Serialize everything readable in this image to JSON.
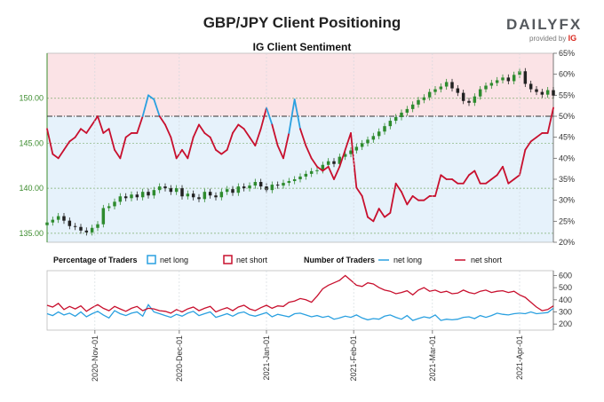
{
  "header": {
    "title": "GBP/JPY Client Positioning",
    "subtitle": "IG Client Sentiment",
    "logo_text": "DAILYFX",
    "logo_sub": "provided by",
    "logo_brand": "IG"
  },
  "legend": {
    "pct_label": "Percentage of Traders",
    "num_label": "Number of Traders",
    "net_long": "net long",
    "net_short": "net short"
  },
  "colors": {
    "net_long": "#2aa0e0",
    "net_short": "#c8102e",
    "bull_candle": "#2e8b2e",
    "bear_candle": "#222222",
    "long_fill": "#e6f2fb",
    "short_fill": "#fbe3e6",
    "price_axis": "#3c8c2e"
  },
  "chart_data": [
    {
      "type": "line",
      "name": "price-and-sentiment",
      "x_dates": [
        "2020-10-15",
        "2020-10-17",
        "2020-10-19",
        "2020-10-21",
        "2020-10-23",
        "2020-10-25",
        "2020-10-27",
        "2020-10-29",
        "2020-10-31",
        "2020-11-02",
        "2020-11-04",
        "2020-11-06",
        "2020-11-08",
        "2020-11-10",
        "2020-11-12",
        "2020-11-14",
        "2020-11-16",
        "2020-11-18",
        "2020-11-20",
        "2020-11-22",
        "2020-11-24",
        "2020-11-26",
        "2020-11-28",
        "2020-11-30",
        "2020-12-02",
        "2020-12-04",
        "2020-12-06",
        "2020-12-08",
        "2020-12-10",
        "2020-12-12",
        "2020-12-14",
        "2020-12-16",
        "2020-12-18",
        "2020-12-20",
        "2020-12-22",
        "2020-12-24",
        "2020-12-26",
        "2020-12-28",
        "2020-12-30",
        "2021-01-01",
        "2021-01-03",
        "2021-01-05",
        "2021-01-07",
        "2021-01-09",
        "2021-01-11",
        "2021-01-13",
        "2021-01-15",
        "2021-01-17",
        "2021-01-19",
        "2021-01-21",
        "2021-01-23",
        "2021-01-25",
        "2021-01-27",
        "2021-01-29",
        "2021-01-31",
        "2021-02-02",
        "2021-02-04",
        "2021-02-06",
        "2021-02-08",
        "2021-02-10",
        "2021-02-12",
        "2021-02-14",
        "2021-02-16",
        "2021-02-18",
        "2021-02-20",
        "2021-02-22",
        "2021-02-24",
        "2021-02-26",
        "2021-02-28",
        "2021-03-02",
        "2021-03-04",
        "2021-03-06",
        "2021-03-08",
        "2021-03-10",
        "2021-03-12",
        "2021-03-14",
        "2021-03-16",
        "2021-03-18",
        "2021-03-20",
        "2021-03-22",
        "2021-03-24",
        "2021-03-26",
        "2021-03-28",
        "2021-03-30",
        "2021-04-01",
        "2021-04-03",
        "2021-04-05",
        "2021-04-07",
        "2021-04-09",
        "2021-04-11",
        "2021-04-13"
      ],
      "price_close": [
        136.2,
        136.5,
        136.9,
        136.4,
        135.8,
        135.7,
        135.3,
        135.1,
        135.6,
        136.0,
        137.8,
        138.0,
        138.5,
        139.1,
        138.9,
        139.3,
        139.0,
        139.6,
        139.2,
        139.8,
        140.2,
        140.0,
        139.6,
        140.0,
        139.1,
        139.4,
        139.0,
        138.8,
        139.6,
        139.2,
        139.0,
        139.6,
        139.9,
        139.5,
        140.2,
        140.0,
        140.3,
        140.7,
        140.2,
        139.8,
        140.4,
        140.3,
        140.6,
        140.8,
        141.0,
        141.3,
        141.6,
        141.9,
        142.0,
        142.6,
        143.0,
        142.7,
        143.5,
        143.8,
        144.2,
        144.6,
        145.0,
        145.4,
        145.8,
        146.3,
        146.9,
        147.5,
        147.9,
        148.4,
        148.8,
        149.3,
        149.8,
        150.1,
        150.7,
        151.0,
        151.3,
        151.8,
        151.1,
        150.6,
        149.7,
        149.5,
        150.2,
        151.0,
        151.4,
        151.7,
        152.0,
        152.3,
        151.9,
        152.6,
        153.0,
        151.6,
        151.0,
        150.7,
        150.4,
        150.9,
        150.3
      ],
      "sentiment_long_pct": [
        47.0,
        41.0,
        40.0,
        42.0,
        44.0,
        45.0,
        47.0,
        46.0,
        48.0,
        50.0,
        46.0,
        47.0,
        42.0,
        40.0,
        45.0,
        46.0,
        46.0,
        50.0,
        55.0,
        54.0,
        50.0,
        48.0,
        45.0,
        40.0,
        42.0,
        40.0,
        45.0,
        48.0,
        46.0,
        45.0,
        42.0,
        41.0,
        42.0,
        46.0,
        48.0,
        47.0,
        45.0,
        43.0,
        47.0,
        52.0,
        48.0,
        43.0,
        40.0,
        46.0,
        54.0,
        47.0,
        43.0,
        40.0,
        38.0,
        37.0,
        38.0,
        35.0,
        38.0,
        42.0,
        46.0,
        33.0,
        31.0,
        26.0,
        25.0,
        28.0,
        26.0,
        27.0,
        34.0,
        32.0,
        29.0,
        31.0,
        30.0,
        30.0,
        31.0,
        31.0,
        36.0,
        35.0,
        35.0,
        34.0,
        34.0,
        36.0,
        37.0,
        34.0,
        34.0,
        35.0,
        36.0,
        38.0,
        34.0,
        35.0,
        36.0,
        42.0,
        44.0,
        45.0,
        46.0,
        46.0,
        52.0
      ],
      "price_axis": {
        "ticks": [
          "135.00",
          "140.00",
          "145.00",
          "150.00"
        ],
        "ylim": [
          134.0,
          155.0
        ]
      },
      "pct_axis": {
        "ticks": [
          "20%",
          "25%",
          "30%",
          "35%",
          "40%",
          "45%",
          "50%",
          "55%",
          "60%",
          "65%"
        ],
        "ylim": [
          20,
          65
        ]
      },
      "reference_level_pct": 50
    },
    {
      "type": "line",
      "name": "number-of-traders",
      "net_long": [
        285,
        270,
        300,
        275,
        290,
        265,
        300,
        260,
        285,
        305,
        275,
        250,
        310,
        285,
        270,
        290,
        300,
        265,
        360,
        300,
        285,
        270,
        255,
        280,
        265,
        290,
        305,
        270,
        285,
        300,
        255,
        270,
        285,
        265,
        290,
        300,
        275,
        265,
        280,
        295,
        260,
        280,
        270,
        260,
        285,
        290,
        275,
        260,
        270,
        255,
        265,
        240,
        250,
        265,
        255,
        275,
        250,
        235,
        245,
        240,
        265,
        275,
        255,
        240,
        270,
        230,
        245,
        260,
        250,
        275,
        230,
        240,
        235,
        240,
        255,
        260,
        245,
        270,
        255,
        270,
        290,
        280,
        275,
        285,
        290,
        285,
        300,
        285,
        290,
        295,
        330
      ],
      "net_short": [
        355,
        340,
        370,
        320,
        345,
        325,
        350,
        305,
        335,
        360,
        330,
        310,
        345,
        325,
        305,
        330,
        345,
        310,
        330,
        325,
        310,
        305,
        290,
        320,
        300,
        325,
        340,
        310,
        330,
        345,
        300,
        320,
        335,
        310,
        340,
        355,
        325,
        310,
        335,
        355,
        330,
        350,
        345,
        380,
        390,
        410,
        400,
        380,
        430,
        490,
        520,
        540,
        560,
        600,
        560,
        520,
        510,
        540,
        530,
        500,
        480,
        470,
        450,
        460,
        475,
        440,
        480,
        500,
        470,
        480,
        460,
        470,
        450,
        455,
        480,
        460,
        450,
        470,
        480,
        460,
        470,
        475,
        460,
        470,
        440,
        420,
        380,
        340,
        310,
        320,
        350
      ],
      "num_axis": {
        "ticks": [
          "200",
          "300",
          "400",
          "500",
          "600"
        ],
        "ylim": [
          150,
          640
        ]
      }
    }
  ],
  "x_axis": {
    "labels": [
      "2020-Nov-01",
      "2020-Dec-01",
      "2021-Jan-01",
      "2021-Feb-01",
      "2021-Mar-01",
      "2021-Apr-01"
    ],
    "dates": [
      "2020-11-01",
      "2020-12-01",
      "2021-01-01",
      "2021-02-01",
      "2021-03-01",
      "2021-04-01"
    ]
  }
}
